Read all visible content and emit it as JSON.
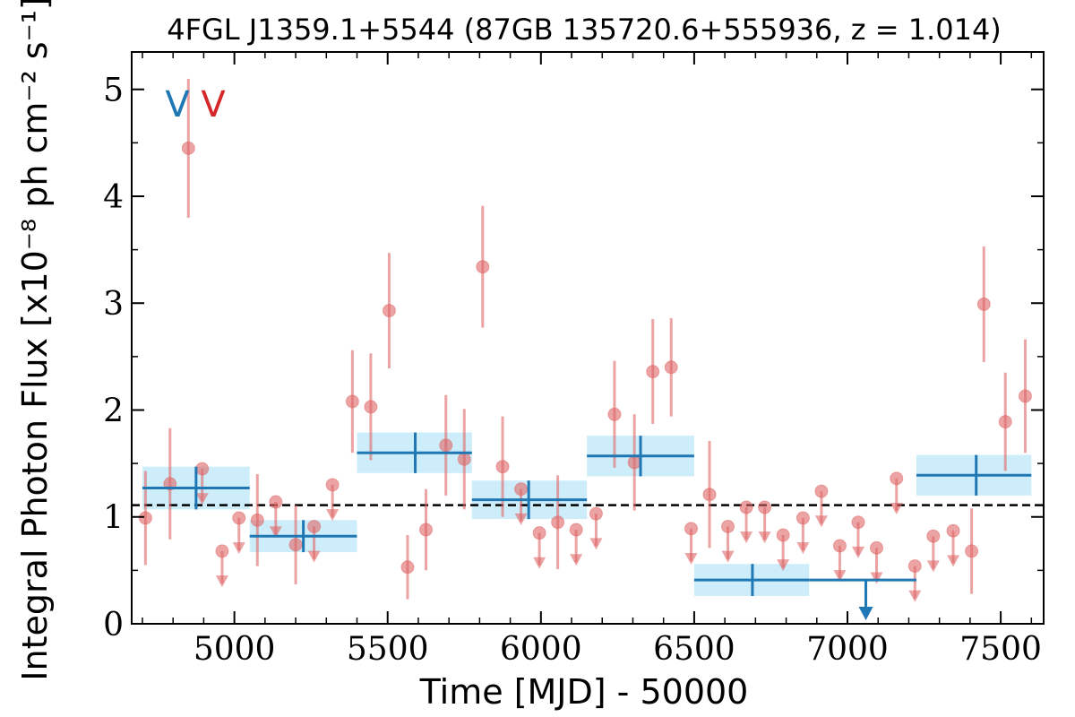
{
  "chart_data": {
    "type": "scatter",
    "title": "4FGL J1359.1+5544 (87GB 135720.6+555936, z = 1.014)",
    "xlabel": "Time [MJD] - 50000",
    "ylabel": "Integral Photon Flux [x10⁻⁸ ph cm⁻² s⁻¹]",
    "xlim": [
      4665,
      7640
    ],
    "ylim": [
      0,
      5.35
    ],
    "x_ticks": [
      5000,
      5500,
      6000,
      6500,
      7000,
      7500
    ],
    "y_ticks": [
      0,
      1,
      2,
      3,
      4,
      5
    ],
    "x_tick_labels": [
      "5000",
      "5500",
      "6000",
      "6500",
      "7000",
      "7500"
    ],
    "y_tick_labels": [
      "0",
      "1",
      "2",
      "3",
      "4",
      "5"
    ],
    "mean_flux": 1.11,
    "annotations": [
      {
        "text": "V",
        "color": "#1f77b4"
      },
      {
        "text": "V",
        "color": "#d62728"
      }
    ],
    "series": [
      {
        "color": "#1f77b4",
        "band_color": "#aee1f7",
        "bins": [
          {
            "x0": 4700,
            "x1": 5050,
            "x": 4875,
            "y": 1.27,
            "err": 0.2
          },
          {
            "x0": 5050,
            "x1": 5400,
            "x": 5225,
            "y": 0.82,
            "err": 0.15
          },
          {
            "x0": 5400,
            "x1": 5775,
            "x": 5590,
            "y": 1.6,
            "err": 0.19
          },
          {
            "x0": 5775,
            "x1": 6150,
            "x": 5960,
            "y": 1.16,
            "err": 0.18
          },
          {
            "x0": 6150,
            "x1": 6500,
            "x": 6325,
            "y": 1.57,
            "err": 0.19
          },
          {
            "x0": 6500,
            "x1": 6875,
            "x": 6690,
            "y": 0.41,
            "err": 0.15
          },
          {
            "x0": 6875,
            "x1": 7225,
            "x": 7060,
            "y": 0.41,
            "upper_limit": true
          },
          {
            "x0": 7225,
            "x1": 7600,
            "x": 7420,
            "y": 1.39,
            "err": 0.19
          }
        ]
      },
      {
        "color": "#e06666",
        "points": [
          {
            "x": 4710,
            "y": 0.99,
            "err": 0.44
          },
          {
            "x": 4790,
            "y": 1.31,
            "err": 0.52
          },
          {
            "x": 4850,
            "y": 4.45,
            "err": 0.65
          },
          {
            "x": 4895,
            "y": 1.45,
            "upper_limit": true
          },
          {
            "x": 4960,
            "y": 0.68,
            "upper_limit": true
          },
          {
            "x": 5015,
            "y": 0.99,
            "upper_limit": true
          },
          {
            "x": 5075,
            "y": 0.97,
            "err": 0.43
          },
          {
            "x": 5135,
            "y": 1.14,
            "upper_limit": true
          },
          {
            "x": 5200,
            "y": 0.74,
            "err": 0.37
          },
          {
            "x": 5260,
            "y": 0.91,
            "upper_limit": true
          },
          {
            "x": 5320,
            "y": 1.3,
            "upper_limit": true
          },
          {
            "x": 5385,
            "y": 2.08,
            "err": 0.48
          },
          {
            "x": 5445,
            "y": 2.03,
            "err": 0.5
          },
          {
            "x": 5505,
            "y": 2.93,
            "err": 0.54
          },
          {
            "x": 5565,
            "y": 0.53,
            "err": 0.3
          },
          {
            "x": 5625,
            "y": 0.88,
            "err": 0.38
          },
          {
            "x": 5690,
            "y": 1.67,
            "err": 0.47
          },
          {
            "x": 5750,
            "y": 1.54,
            "err": 0.47
          },
          {
            "x": 5810,
            "y": 3.34,
            "err": 0.57
          },
          {
            "x": 5875,
            "y": 1.47,
            "err": 0.47
          },
          {
            "x": 5935,
            "y": 1.26,
            "upper_limit": true
          },
          {
            "x": 5995,
            "y": 0.85,
            "upper_limit": true
          },
          {
            "x": 6055,
            "y": 0.95,
            "err": 0.44
          },
          {
            "x": 6115,
            "y": 0.88,
            "upper_limit": true
          },
          {
            "x": 6180,
            "y": 1.03,
            "upper_limit": true
          },
          {
            "x": 6240,
            "y": 1.96,
            "err": 0.5
          },
          {
            "x": 6305,
            "y": 1.51,
            "err": 0.45
          },
          {
            "x": 6365,
            "y": 2.36,
            "err": 0.49
          },
          {
            "x": 6425,
            "y": 2.4,
            "err": 0.46
          },
          {
            "x": 6490,
            "y": 0.89,
            "upper_limit": true
          },
          {
            "x": 6550,
            "y": 1.21,
            "err": 0.5
          },
          {
            "x": 6610,
            "y": 0.91,
            "upper_limit": true
          },
          {
            "x": 6670,
            "y": 1.09,
            "upper_limit": true
          },
          {
            "x": 6730,
            "y": 1.09,
            "upper_limit": true
          },
          {
            "x": 6790,
            "y": 0.83,
            "upper_limit": true
          },
          {
            "x": 6855,
            "y": 0.99,
            "upper_limit": true
          },
          {
            "x": 6915,
            "y": 1.24,
            "upper_limit": true
          },
          {
            "x": 6975,
            "y": 0.73,
            "upper_limit": true
          },
          {
            "x": 7035,
            "y": 0.95,
            "upper_limit": true
          },
          {
            "x": 7095,
            "y": 0.71,
            "upper_limit": true
          },
          {
            "x": 7160,
            "y": 1.36,
            "upper_limit": true
          },
          {
            "x": 7220,
            "y": 0.54,
            "upper_limit": true
          },
          {
            "x": 7280,
            "y": 0.82,
            "upper_limit": true
          },
          {
            "x": 7345,
            "y": 0.87,
            "upper_limit": true
          },
          {
            "x": 7405,
            "y": 0.68,
            "err": 0.4
          },
          {
            "x": 7445,
            "y": 2.99,
            "err": 0.54
          },
          {
            "x": 7515,
            "y": 1.89,
            "err": 0.46
          },
          {
            "x": 7580,
            "y": 2.13,
            "err": 0.53
          }
        ]
      }
    ]
  }
}
